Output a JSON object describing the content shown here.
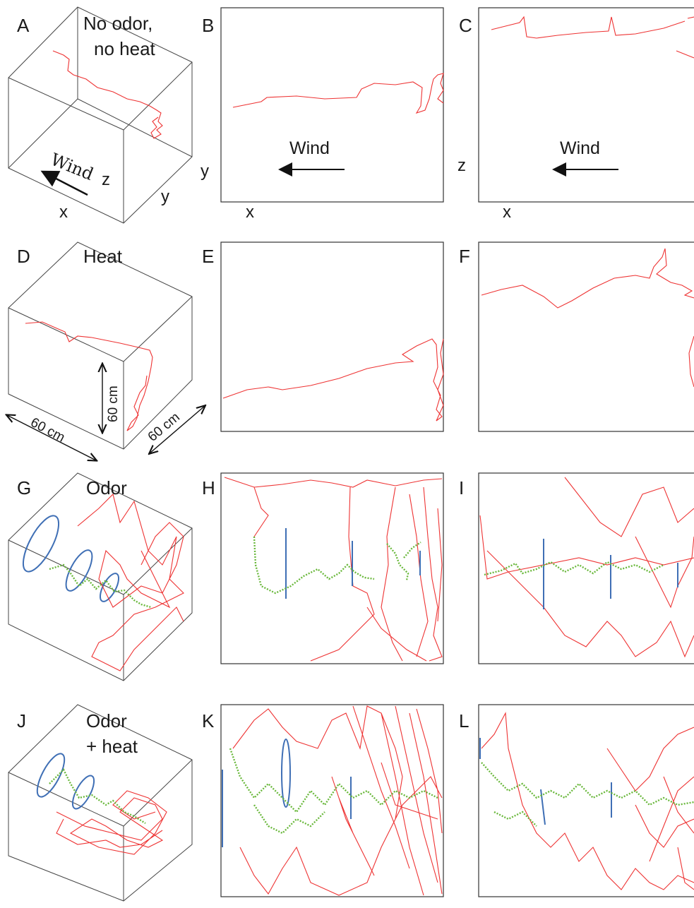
{
  "rows": [
    {
      "condition_lines": [
        "No odor,",
        "no heat"
      ],
      "panels": {
        "cube": "A",
        "top": "B",
        "side": "C"
      },
      "top_axes": {
        "horizontal": "x",
        "vertical": "y"
      },
      "side_axes": {
        "horizontal": "x",
        "vertical": "z"
      },
      "cube_axes": {
        "x": "x",
        "y": "y",
        "z": "z"
      },
      "wind_label": "Wind",
      "cube_wind_label": "Wind"
    },
    {
      "condition_lines": [
        "Heat"
      ],
      "panels": {
        "cube": "D",
        "top": "E",
        "side": "F"
      },
      "dims": {
        "x": "60 cm",
        "y": "60 cm",
        "z": "60 cm"
      }
    },
    {
      "condition_lines": [
        "Odor"
      ],
      "panels": {
        "cube": "G",
        "top": "H",
        "side": "I"
      }
    },
    {
      "condition_lines": [
        "Odor",
        "+ heat"
      ],
      "panels": {
        "cube": "J",
        "top": "K",
        "side": "L"
      }
    }
  ],
  "colors": {
    "track": "#ee3333",
    "odor_contact": "#6ab83c",
    "odor_marker": "#b040c0",
    "odor_source": "#3f6fb5",
    "frame": "#333333"
  }
}
